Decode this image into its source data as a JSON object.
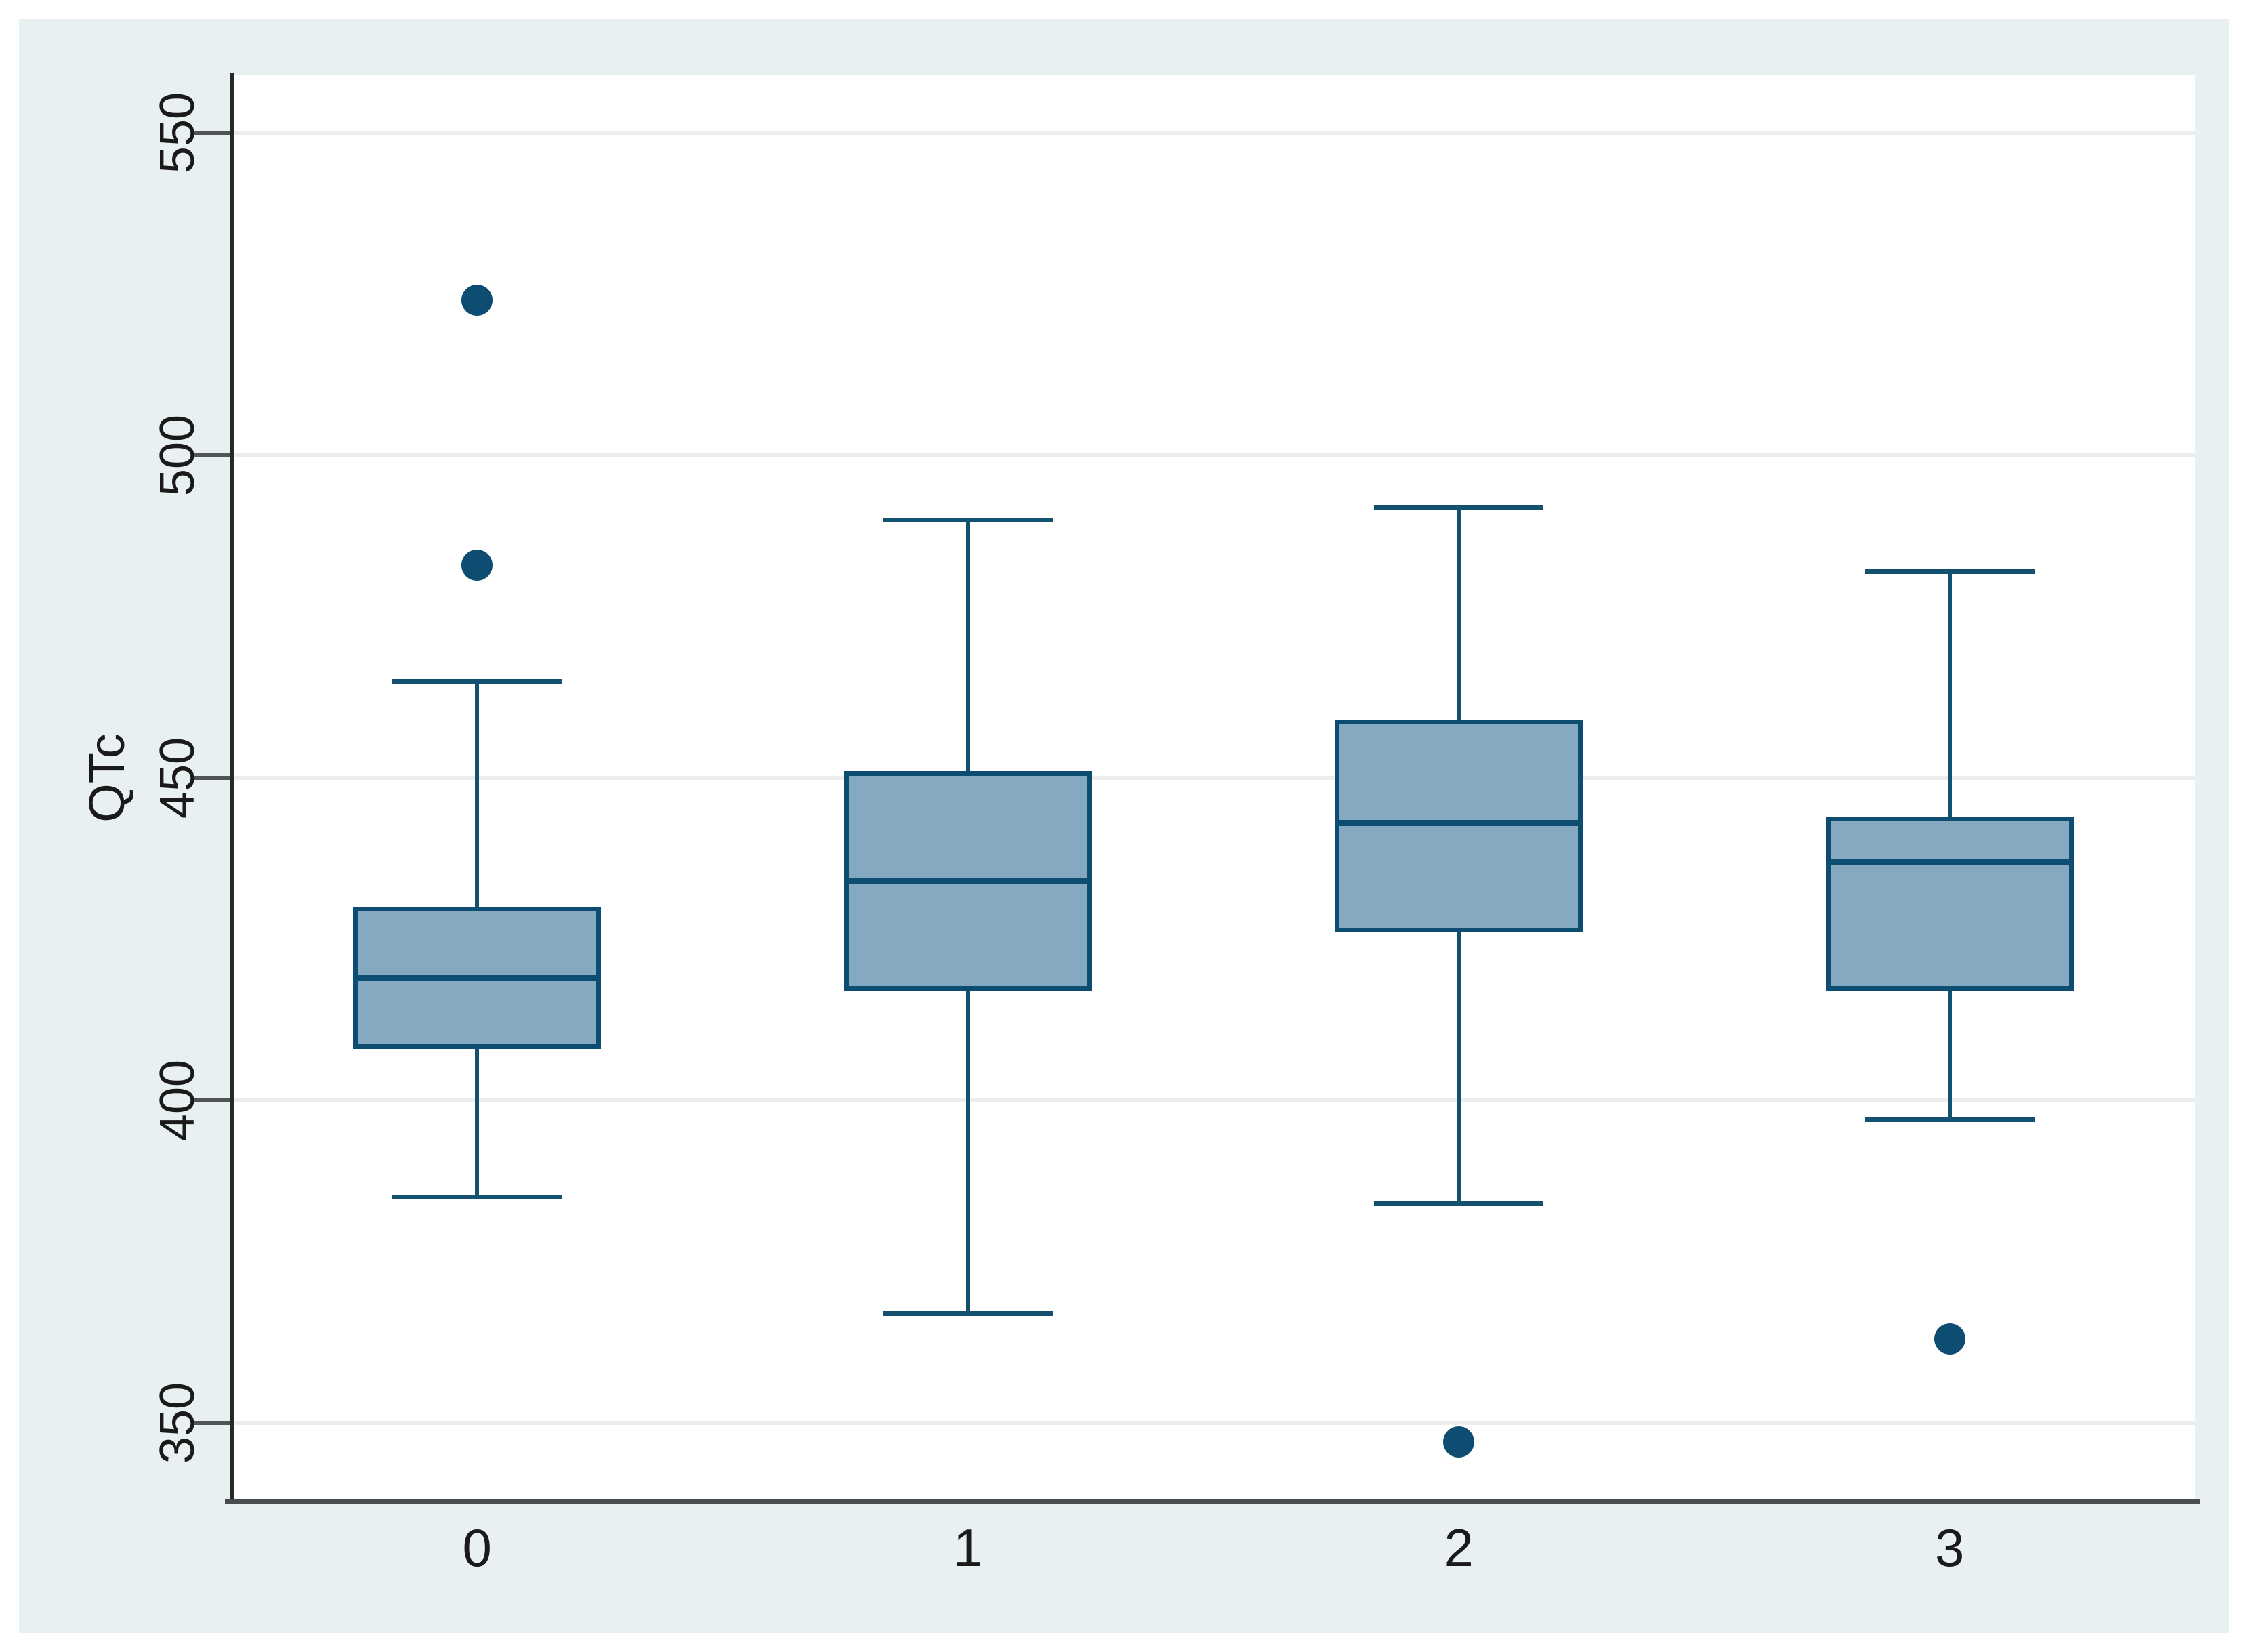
{
  "figure": {
    "background": "#ffffff",
    "canvas_background": "#e8f0f1",
    "plot_background": "#ffffff"
  },
  "chart_data": {
    "type": "box",
    "title": "",
    "xlabel": "",
    "ylabel": "QTc",
    "categories": [
      "0",
      "1",
      "2",
      "3"
    ],
    "y_axis": {
      "ticks": [
        350,
        400,
        450,
        500,
        550
      ],
      "display_min": 338.2,
      "display_max": 559.0,
      "grid": true
    },
    "legend_position": "none",
    "series": [
      {
        "category": "0",
        "whisker_low": 385,
        "q1": 408,
        "median": 419,
        "q3": 430,
        "whisker_high": 465,
        "outliers": [
          483,
          524
        ]
      },
      {
        "category": "1",
        "whisker_low": 367,
        "q1": 417,
        "median": 434,
        "q3": 451,
        "whisker_high": 490,
        "outliers": []
      },
      {
        "category": "2",
        "whisker_low": 384,
        "q1": 426,
        "median": 443,
        "q3": 459,
        "whisker_high": 492,
        "outliers": [
          347
        ]
      },
      {
        "category": "3",
        "whisker_low": 397,
        "q1": 417,
        "median": 437,
        "q3": 444,
        "whisker_high": 482,
        "outliers": [
          363
        ]
      }
    ],
    "colors": {
      "box_fill": "#84a9c1",
      "box_stroke": "#0d4d71",
      "median": "#0d4d71",
      "whisker": "#14506f",
      "outlier": "#0d4d71",
      "gridline": "#ededed",
      "y_axis_line": "#26282a",
      "x_axis_line": "#4a4d50",
      "tick": "#515457",
      "text": "#1a1a1a"
    }
  }
}
